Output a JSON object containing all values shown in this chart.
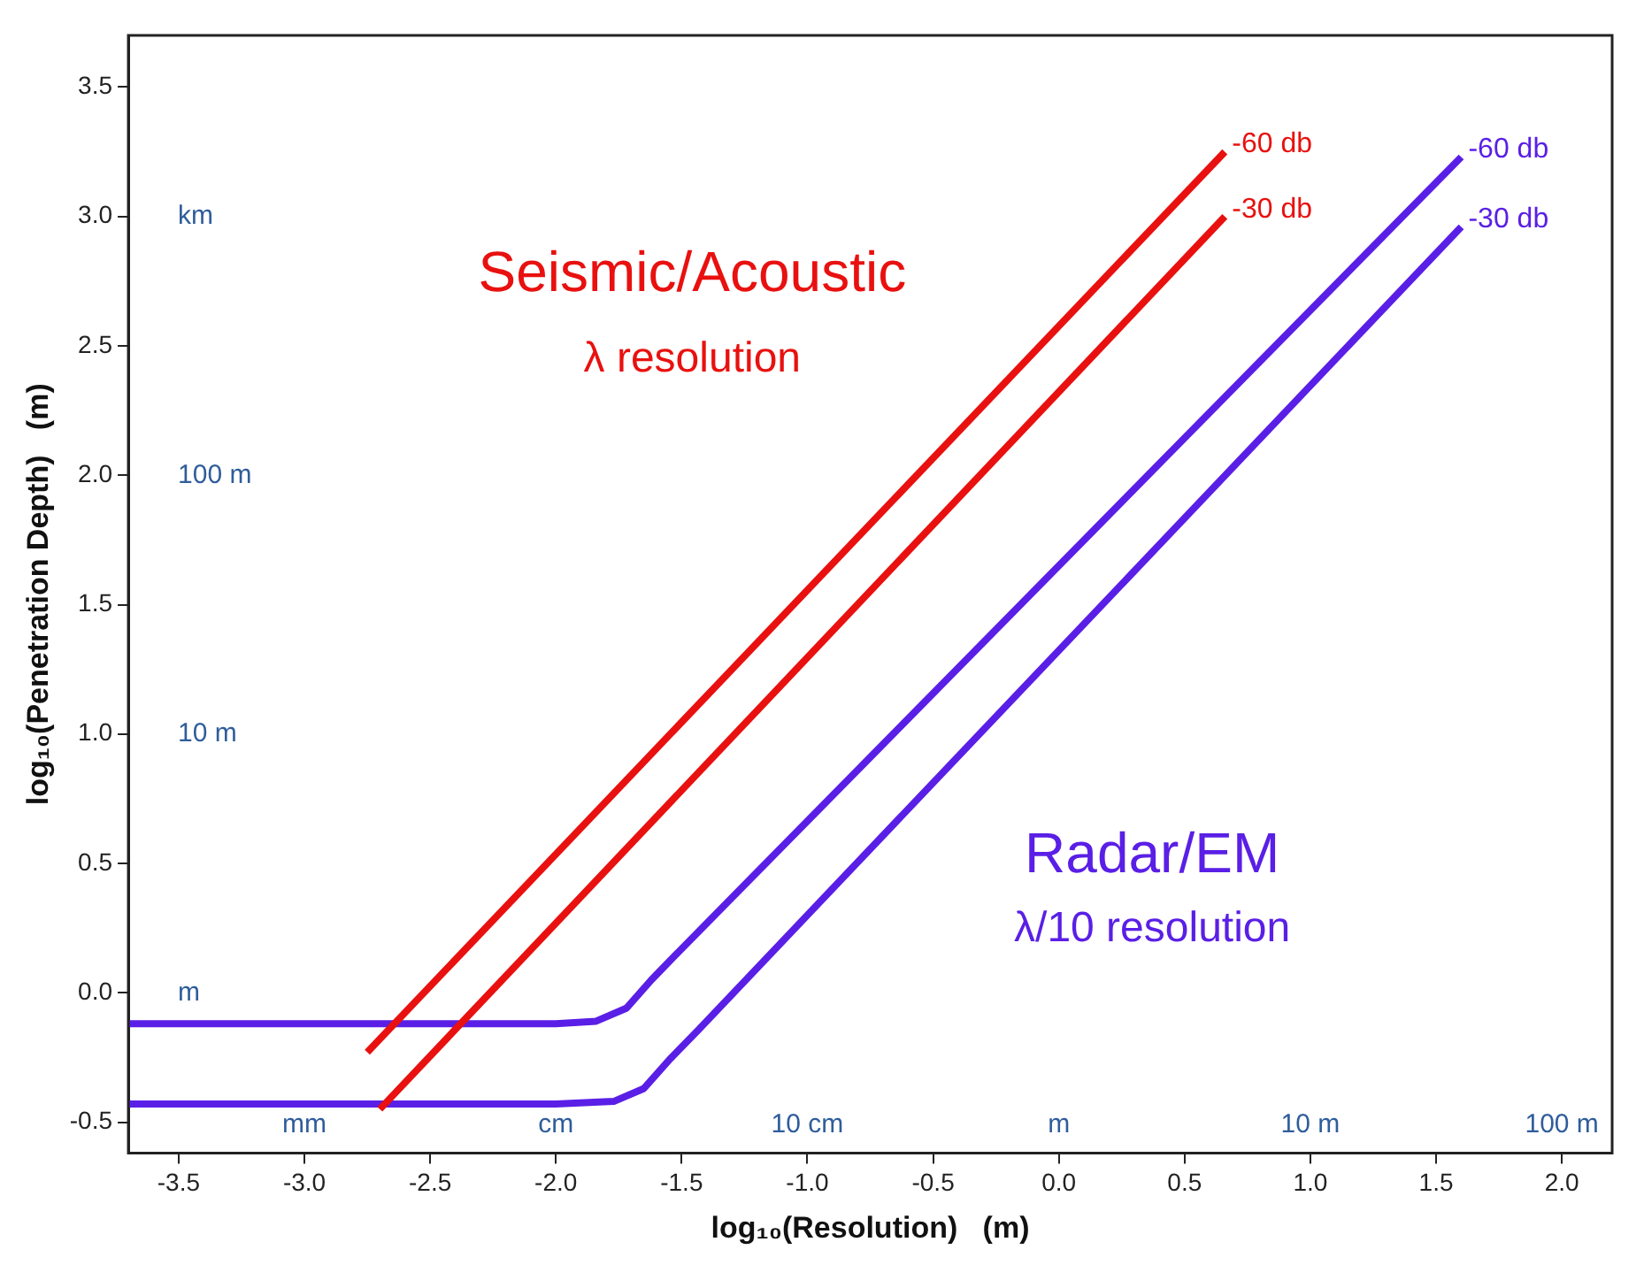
{
  "chart_data": {
    "type": "line",
    "xlabel": "log₁₀(Resolution)   (m)",
    "ylabel": "log₁₀(Penetration Depth)   (m)",
    "xlim": [
      -3.7,
      2.2
    ],
    "ylim": [
      -0.62,
      3.7
    ],
    "xticks": [
      -3.5,
      {
        "value": -3,
        "label": "-3.0"
      },
      -2.5,
      {
        "value": -2,
        "label": "-2.0"
      },
      -1.5,
      {
        "value": -1,
        "label": "-1.0"
      },
      -0.5,
      {
        "value": 0,
        "label": "0.0"
      },
      0.5,
      {
        "value": 1,
        "label": "1.0"
      },
      1.5,
      {
        "value": 2,
        "label": "2.0"
      }
    ],
    "yticks": [
      -0.5,
      {
        "value": 0,
        "label": "0.0"
      },
      0.5,
      {
        "value": 1,
        "label": "1.0"
      },
      1.5,
      {
        "value": 2,
        "label": "2.0"
      },
      2.5,
      {
        "value": 3,
        "label": "3.0"
      },
      3.5
    ],
    "grid": false,
    "legend": false,
    "marker": "none",
    "line_style": "solid",
    "series": [
      {
        "name": "-60 db",
        "color": "#e8110f",
        "x": [
          -2.75,
          0.66
        ],
        "values": [
          -0.23,
          3.25
        ]
      },
      {
        "name": "-30 db",
        "color": "#e8110f",
        "x": [
          -2.7,
          0.66
        ],
        "values": [
          -0.45,
          3.0
        ]
      },
      {
        "name": "-60 db",
        "color": "#5a1fe6",
        "x": [
          -3.7,
          -2.0,
          -1.84,
          -1.72,
          -1.62,
          -1.51,
          1.6
        ],
        "values": [
          -0.12,
          -0.12,
          -0.11,
          -0.06,
          0.05,
          0.16,
          3.23
        ]
      },
      {
        "name": "-30 db",
        "color": "#5a1fe6",
        "x": [
          -3.7,
          -2.0,
          -1.77,
          -1.65,
          -1.55,
          -1.43,
          1.6
        ],
        "values": [
          -0.43,
          -0.43,
          -0.42,
          -0.37,
          -0.26,
          -0.14,
          2.96
        ]
      }
    ],
    "annotations": [
      "km",
      "100 m",
      "10 m",
      "m",
      "mm",
      "cm",
      "10 cm",
      "m",
      "10 m",
      "100 m",
      "Seismic/Acoustic",
      "λ resolution",
      "Radar/EM",
      "λ/10 resolution"
    ]
  }
}
